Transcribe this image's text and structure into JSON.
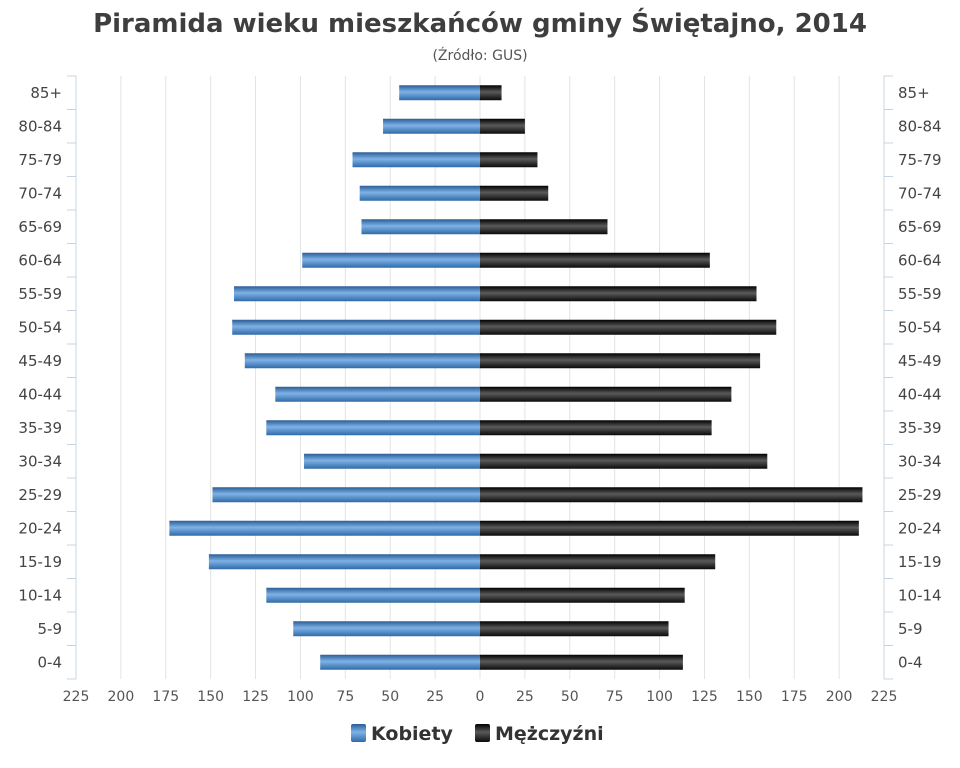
{
  "chart_data": {
    "type": "bar",
    "orientation": "horizontal-population-pyramid",
    "title": "Piramida wieku mieszkańców gminy Świętajno, 2014",
    "subtitle": "(Źródło: GUS)",
    "categories": [
      "85+",
      "80-84",
      "75-79",
      "70-74",
      "65-69",
      "60-64",
      "55-59",
      "50-54",
      "45-49",
      "40-44",
      "35-39",
      "30-34",
      "25-29",
      "20-24",
      "15-19",
      "10-14",
      "5-9",
      "0-4"
    ],
    "series": [
      {
        "name": "Kobiety",
        "color": "#3f7fc0",
        "side": "left",
        "values": [
          45,
          54,
          71,
          67,
          66,
          99,
          137,
          138,
          131,
          114,
          119,
          98,
          149,
          173,
          151,
          119,
          104,
          89
        ]
      },
      {
        "name": "Mężczyźni",
        "color": "#151515",
        "side": "right",
        "values": [
          12,
          25,
          32,
          38,
          71,
          128,
          154,
          165,
          156,
          140,
          129,
          160,
          213,
          211,
          131,
          114,
          105,
          113
        ]
      }
    ],
    "xlim": [
      -225,
      225
    ],
    "xticks": [
      -225,
      -200,
      -175,
      -150,
      -125,
      -100,
      -75,
      -50,
      -25,
      0,
      25,
      50,
      75,
      100,
      125,
      150,
      175,
      200,
      225
    ],
    "xtick_labels": [
      "225",
      "200",
      "175",
      "150",
      "125",
      "100",
      "75",
      "50",
      "25",
      "0",
      "25",
      "50",
      "75",
      "100",
      "125",
      "150",
      "175",
      "200",
      "225"
    ],
    "grid": true,
    "legend": "bottom-center"
  }
}
